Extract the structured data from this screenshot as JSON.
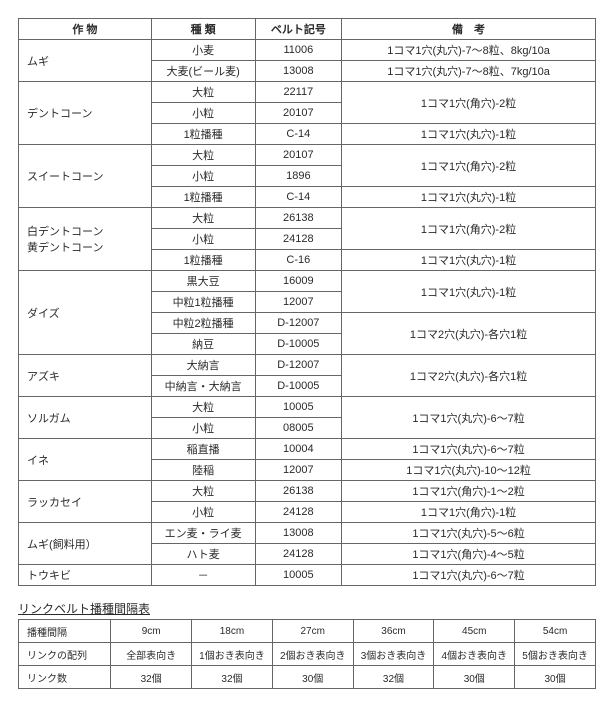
{
  "table1": {
    "headers": [
      "作 物",
      "種 類",
      "ベルト記号",
      "備　考"
    ],
    "rows": [
      {
        "crop": "ムギ",
        "span": 2,
        "cells": [
          [
            "小麦",
            "11006",
            "1コマ1穴(丸穴)-7～8粒、8kg/10a"
          ],
          [
            "大麦(ビール麦)",
            "13008",
            "1コマ1穴(丸穴)-7～8粒、7kg/10a"
          ]
        ]
      },
      {
        "crop": "デントコーン",
        "span": 3,
        "cells": [
          [
            "大粒",
            "22117",
            {
              "v": "1コマ1穴(角穴)-2粒",
              "rs": 2
            }
          ],
          [
            "小粒",
            "20107",
            null
          ],
          [
            "1粒播種",
            "C-14",
            "1コマ1穴(丸穴)-1粒"
          ]
        ]
      },
      {
        "crop": "スイートコーン",
        "span": 3,
        "cells": [
          [
            "大粒",
            "20107",
            {
              "v": "1コマ1穴(角穴)-2粒",
              "rs": 2
            }
          ],
          [
            "小粒",
            "1896",
            null
          ],
          [
            "1粒播種",
            "C-14",
            "1コマ1穴(丸穴)-1粒"
          ]
        ]
      },
      {
        "crop": "白デントコーン\n黄デントコーン",
        "span": 3,
        "cells": [
          [
            "大粒",
            "26138",
            {
              "v": "1コマ1穴(角穴)-2粒",
              "rs": 2
            }
          ],
          [
            "小粒",
            "24128",
            null
          ],
          [
            "1粒播種",
            "C-16",
            "1コマ1穴(丸穴)-1粒"
          ]
        ]
      },
      {
        "crop": "ダイズ",
        "span": 4,
        "cells": [
          [
            "黒大豆",
            "16009",
            {
              "v": "1コマ1穴(丸穴)-1粒",
              "rs": 2
            }
          ],
          [
            "中粒1粒播種",
            "12007",
            null
          ],
          [
            "中粒2粒播種",
            "D-12007",
            {
              "v": "1コマ2穴(丸穴)-各穴1粒",
              "rs": 2
            }
          ],
          [
            "納豆",
            "D-10005",
            null
          ]
        ]
      },
      {
        "crop": "アズキ",
        "span": 2,
        "cells": [
          [
            "大納言",
            "D-12007",
            {
              "v": "1コマ2穴(丸穴)-各穴1粒",
              "rs": 2
            }
          ],
          [
            "中納言・大納言",
            "D-10005",
            null
          ]
        ]
      },
      {
        "crop": "ソルガム",
        "span": 2,
        "cells": [
          [
            "大粒",
            "10005",
            {
              "v": "1コマ1穴(丸穴)-6～7粒",
              "rs": 2
            }
          ],
          [
            "小粒",
            "08005",
            null
          ]
        ]
      },
      {
        "crop": "イネ",
        "span": 2,
        "cells": [
          [
            "稲直播",
            "10004",
            "1コマ1穴(丸穴)-6～7粒"
          ],
          [
            "陸稲",
            "12007",
            "1コマ1穴(丸穴)-10～12粒"
          ]
        ]
      },
      {
        "crop": "ラッカセイ",
        "span": 2,
        "cells": [
          [
            "大粒",
            "26138",
            "1コマ1穴(角穴)-1～2粒"
          ],
          [
            "小粒",
            "24128",
            "1コマ1穴(角穴)-1粒"
          ]
        ]
      },
      {
        "crop": "ムギ(飼料用）",
        "span": 2,
        "cells": [
          [
            "エン麦・ライ麦",
            "13008",
            "1コマ1穴(丸穴)-5～6粒"
          ],
          [
            "ハト麦",
            "24128",
            "1コマ1穴(角穴)-4～5粒"
          ]
        ]
      },
      {
        "crop": "トウキビ",
        "span": 1,
        "cells": [
          [
            "－",
            "10005",
            "1コマ1穴(丸穴)-6～7粒"
          ]
        ]
      }
    ],
    "colwidths": [
      "23%",
      "18%",
      "15%",
      "44%"
    ]
  },
  "subtitle": "リンクベルト播種間隔表",
  "table2": {
    "rows": [
      [
        "播種間隔",
        "9cm",
        "18cm",
        "27cm",
        "36cm",
        "45cm",
        "54cm"
      ],
      [
        "リンクの配列",
        "全部表向き",
        "1個おき表向き",
        "2個おき表向き",
        "3個おき表向き",
        "4個おき表向き",
        "5個おき表向き"
      ],
      [
        "リンク数",
        "32個",
        "32個",
        "30個",
        "32個",
        "30個",
        "30個"
      ]
    ],
    "colwidths": [
      "16%",
      "14%",
      "14%",
      "14%",
      "14%",
      "14%",
      "14%"
    ]
  }
}
